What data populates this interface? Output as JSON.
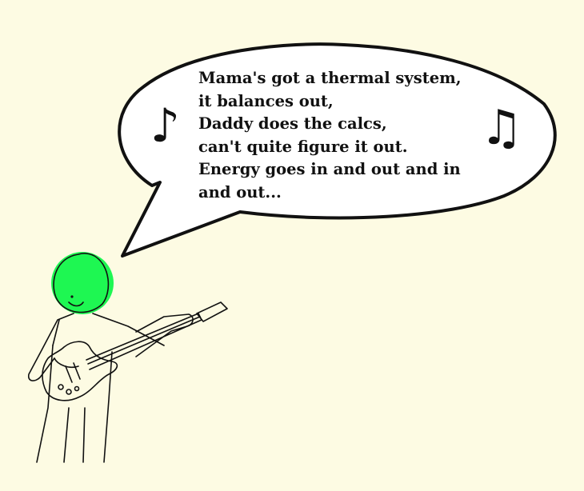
{
  "lyrics": {
    "lines": [
      "Mama's got a thermal system,",
      "it balances out,",
      "Daddy does the calcs,",
      "can't quite figure it out.",
      "Energy goes in and out and in",
      "and out..."
    ]
  },
  "notes": {
    "left_symbol": "♪",
    "right_symbol": "♫"
  },
  "colors": {
    "background": "#fdfbe3",
    "head": "#1ef752",
    "ink": "#111111"
  },
  "icons": {
    "left": "eighth-note-icon",
    "right": "beamed-notes-icon"
  }
}
